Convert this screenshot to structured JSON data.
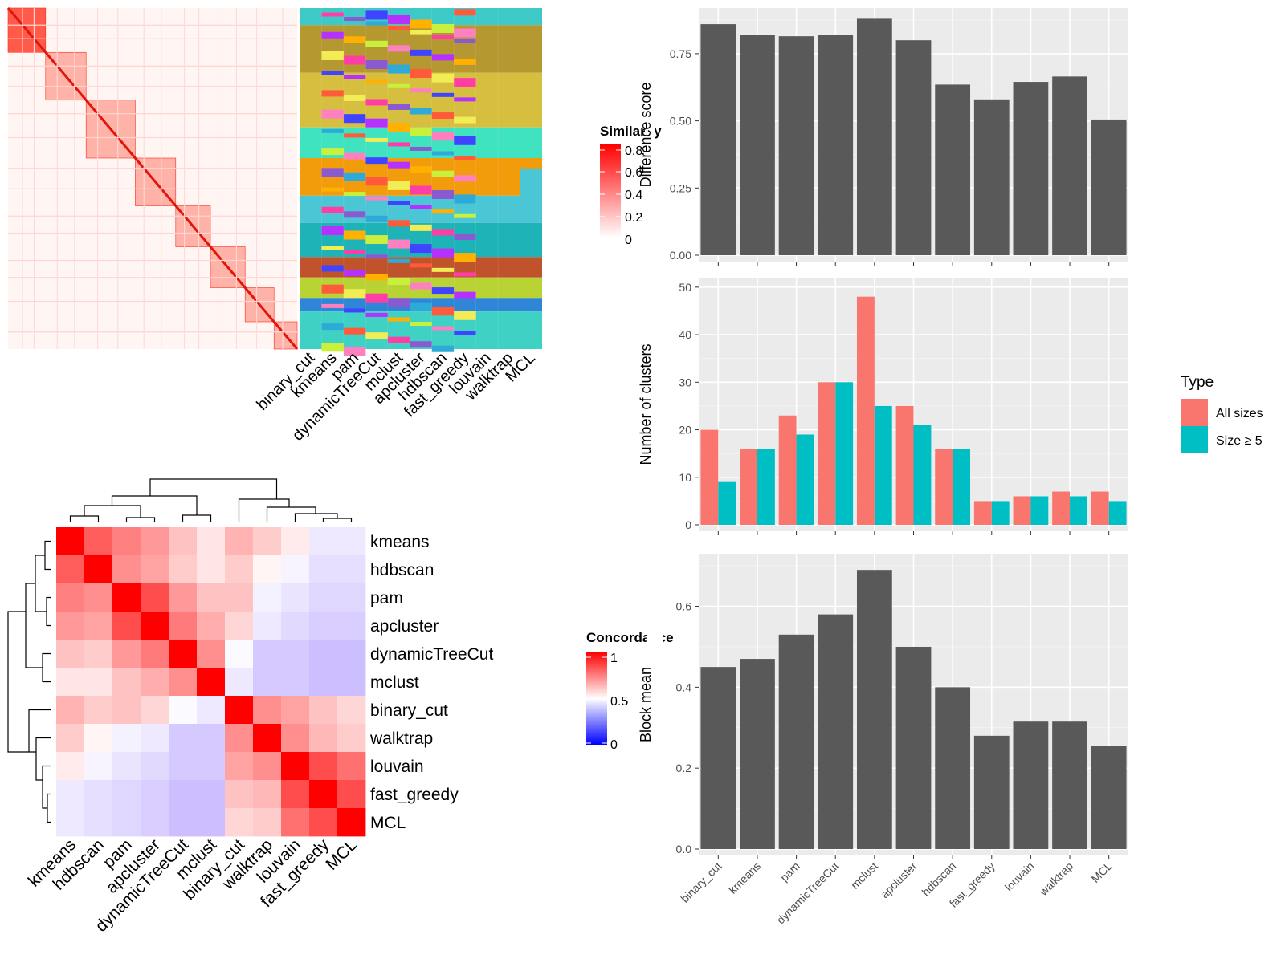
{
  "methods_sorted": [
    "binary_cut",
    "kmeans",
    "pam",
    "dynamicTreeCut",
    "mclust",
    "apcluster",
    "hdbscan",
    "fast_greedy",
    "louvain",
    "walktrap",
    "MCL"
  ],
  "consensus_heatmap": {
    "legend_title": "Similarity",
    "legend_ticks": [
      "0.8",
      "0.6",
      "0.4",
      "0.2",
      "0"
    ],
    "column_labels": [
      "binary_cut",
      "kmeans",
      "pam",
      "dynamicTreeCut",
      "mclust",
      "apcluster",
      "hdbscan",
      "fast_greedy",
      "louvain",
      "walktrap",
      "MCL"
    ]
  },
  "concordance": {
    "legend_title": "Concordance",
    "legend_ticks": [
      "1",
      "0.5",
      "0"
    ],
    "methods": [
      "kmeans",
      "hdbscan",
      "pam",
      "apcluster",
      "dynamicTreeCut",
      "mclust",
      "binary_cut",
      "walktrap",
      "louvain",
      "fast_greedy",
      "MCL"
    ]
  },
  "colors": {
    "bar_gray": "#595959",
    "panel_bg": "#ebebeb",
    "all_sizes": "#F8766D",
    "size_ge5": "#00BFC4",
    "heat_high": "#ff0000",
    "heat_low": "#0000ff"
  },
  "chart_data": [
    {
      "type": "bar",
      "categories": [
        "binary_cut",
        "kmeans",
        "pam",
        "dynamicTreeCut",
        "mclust",
        "apcluster",
        "hdbscan",
        "fast_greedy",
        "louvain",
        "walktrap",
        "MCL"
      ],
      "values": [
        0.86,
        0.82,
        0.815,
        0.82,
        0.88,
        0.8,
        0.635,
        0.58,
        0.645,
        0.665,
        0.505
      ],
      "ylabel": "Difference score",
      "ylim": [
        0,
        0.92
      ],
      "yticks": [
        "0.00",
        "0.25",
        "0.50",
        "0.75"
      ],
      "grid": true
    },
    {
      "type": "bar",
      "categories": [
        "binary_cut",
        "kmeans",
        "pam",
        "dynamicTreeCut",
        "mclust",
        "apcluster",
        "hdbscan",
        "fast_greedy",
        "louvain",
        "walktrap",
        "MCL"
      ],
      "series": [
        {
          "name": "All sizes",
          "values": [
            20,
            16,
            23,
            30,
            48,
            25,
            16,
            5,
            6,
            7,
            7
          ]
        },
        {
          "name": "Size ≥ 5",
          "values": [
            9,
            16,
            19,
            30,
            25,
            21,
            16,
            5,
            6,
            6,
            5
          ]
        }
      ],
      "ylabel": "Number of clusters",
      "ylim": [
        0,
        52
      ],
      "yticks": [
        "0",
        "10",
        "20",
        "30",
        "40",
        "50"
      ],
      "legend_title": "Type",
      "legend_position": "right",
      "grid": true
    },
    {
      "type": "bar",
      "categories": [
        "binary_cut",
        "kmeans",
        "pam",
        "dynamicTreeCut",
        "mclust",
        "apcluster",
        "hdbscan",
        "fast_greedy",
        "louvain",
        "walktrap",
        "MCL"
      ],
      "values": [
        0.45,
        0.47,
        0.53,
        0.58,
        0.69,
        0.5,
        0.4,
        0.28,
        0.315,
        0.315,
        0.255
      ],
      "ylabel": "Block mean",
      "ylim": [
        0,
        0.73
      ],
      "yticks": [
        "0.0",
        "0.2",
        "0.4",
        "0.6"
      ],
      "grid": true
    },
    {
      "type": "heatmap",
      "rows": [
        "kmeans",
        "hdbscan",
        "pam",
        "apcluster",
        "dynamicTreeCut",
        "mclust",
        "binary_cut",
        "walktrap",
        "louvain",
        "fast_greedy",
        "MCL"
      ],
      "cols": [
        "kmeans",
        "hdbscan",
        "pam",
        "apcluster",
        "dynamicTreeCut",
        "mclust",
        "binary_cut",
        "walktrap",
        "louvain",
        "fast_greedy",
        "MCL"
      ],
      "values": [
        [
          1.0,
          0.82,
          0.75,
          0.7,
          0.62,
          0.55,
          0.65,
          0.6,
          0.54,
          0.42,
          0.42
        ],
        [
          0.82,
          1.0,
          0.72,
          0.68,
          0.6,
          0.55,
          0.6,
          0.52,
          0.46,
          0.38,
          0.38
        ],
        [
          0.75,
          0.72,
          1.0,
          0.85,
          0.7,
          0.62,
          0.62,
          0.45,
          0.4,
          0.35,
          0.35
        ],
        [
          0.7,
          0.68,
          0.85,
          1.0,
          0.76,
          0.66,
          0.58,
          0.42,
          0.36,
          0.32,
          0.32
        ],
        [
          0.62,
          0.6,
          0.7,
          0.76,
          1.0,
          0.72,
          0.48,
          0.3,
          0.3,
          0.26,
          0.26
        ],
        [
          0.55,
          0.55,
          0.62,
          0.66,
          0.72,
          1.0,
          0.42,
          0.3,
          0.3,
          0.26,
          0.26
        ],
        [
          0.65,
          0.6,
          0.62,
          0.58,
          0.48,
          0.42,
          1.0,
          0.72,
          0.68,
          0.62,
          0.58
        ],
        [
          0.6,
          0.52,
          0.45,
          0.42,
          0.3,
          0.3,
          0.72,
          1.0,
          0.72,
          0.64,
          0.6
        ],
        [
          0.54,
          0.46,
          0.4,
          0.36,
          0.3,
          0.3,
          0.68,
          0.72,
          1.0,
          0.85,
          0.78
        ],
        [
          0.42,
          0.38,
          0.35,
          0.32,
          0.26,
          0.26,
          0.62,
          0.64,
          0.85,
          1.0,
          0.85
        ],
        [
          0.42,
          0.38,
          0.35,
          0.32,
          0.26,
          0.26,
          0.58,
          0.6,
          0.78,
          0.85,
          1.0
        ]
      ],
      "legend_ticks": [
        "1",
        "0.5",
        "0"
      ]
    }
  ]
}
